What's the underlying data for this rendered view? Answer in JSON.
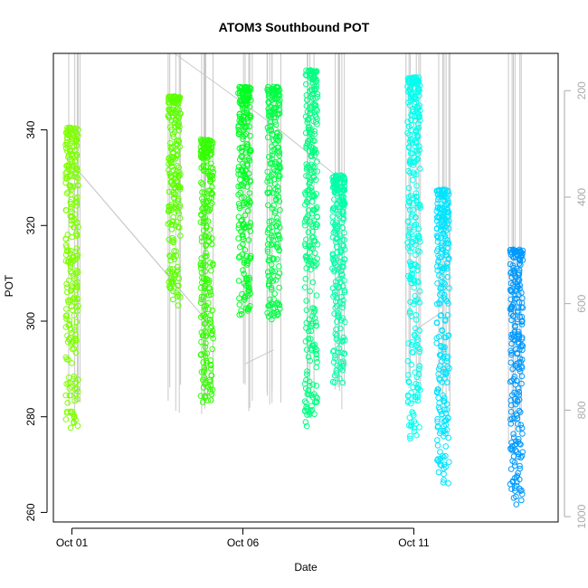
{
  "chart_data": {
    "type": "scatter",
    "title": "ATOM3 Southbound POT",
    "xlabel": "Date",
    "ylabel": "POT",
    "x_ticks": [
      "Oct 01",
      "Oct 06",
      "Oct 11"
    ],
    "x_range_days": [
      0.6,
      14.6
    ],
    "y_ticks": [
      260,
      280,
      300,
      320,
      340
    ],
    "ylim": [
      258,
      356
    ],
    "y2_ticks": [
      200,
      400,
      600,
      800,
      1000
    ],
    "y2lim": [
      1010,
      130
    ],
    "y2_inverted": true,
    "grid": false,
    "legend": "none",
    "casts": [
      {
        "day": 1.0,
        "pot_min": 277.0,
        "pot_max": 340.5,
        "depth_max": 840,
        "color": "#7FFF00"
      },
      {
        "day": 4.0,
        "pot_min": 303.0,
        "pot_max": 347.0,
        "depth_max": 820,
        "color": "#5CFF00"
      },
      {
        "day": 4.95,
        "pot_min": 283.0,
        "pot_max": 338.0,
        "depth_max": 820,
        "color": "#33FF00"
      },
      {
        "day": 6.05,
        "pot_min": 300.5,
        "pot_max": 349.0,
        "depth_max": 820,
        "color": "#00FF22"
      },
      {
        "day": 6.9,
        "pot_min": 300.0,
        "pot_max": 349.0,
        "depth_max": 820,
        "color": "#00FF44"
      },
      {
        "day": 8.0,
        "pot_min": 278.0,
        "pot_max": 352.5,
        "depth_max": 790,
        "color": "#00FF80"
      },
      {
        "day": 8.8,
        "pot_min": 287.0,
        "pot_max": 330.5,
        "depth_max": 800,
        "color": "#00FFA8"
      },
      {
        "day": 11.0,
        "pot_min": 275.0,
        "pot_max": 351.0,
        "depth_max": 800,
        "color": "#00FFEE"
      },
      {
        "day": 11.85,
        "pot_min": 266.0,
        "pot_max": 327.5,
        "depth_max": 810,
        "color": "#00E4FF"
      },
      {
        "day": 14.0,
        "pot_min": 261.5,
        "pot_max": 315.0,
        "depth_max": 890,
        "color": "#0099FF"
      }
    ]
  }
}
